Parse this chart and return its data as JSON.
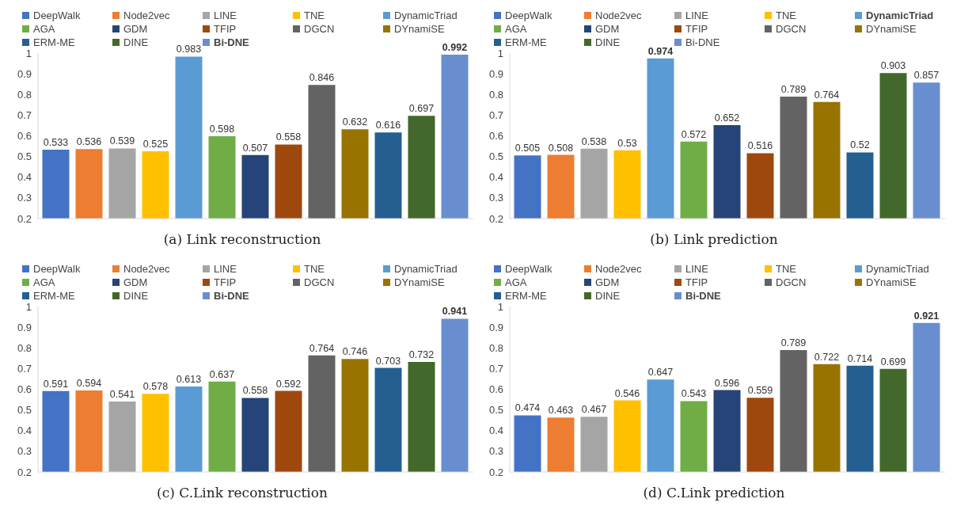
{
  "chart_data": [
    {
      "type": "bar",
      "xlabel": "(a) Link reconstruction",
      "categories": [
        null
      ],
      "ylim": [
        0.2,
        1
      ],
      "yticks": [
        0.2,
        0.3,
        0.4,
        0.5,
        0.6,
        0.7,
        0.8,
        0.9,
        1
      ],
      "grid": false,
      "legend": "top",
      "data_labels": true,
      "tick_labels": "y",
      "series": [
        {
          "name": "DeepWalk",
          "color": "#4472c4",
          "values": [
            0.533
          ]
        },
        {
          "name": "Node2vec",
          "color": "#ed7d31",
          "values": [
            0.536
          ]
        },
        {
          "name": "LINE",
          "color": "#a5a5a5",
          "values": [
            0.539
          ]
        },
        {
          "name": "TNE",
          "color": "#ffc000",
          "values": [
            0.525
          ]
        },
        {
          "name": "DynamicTriad",
          "color": "#5b9bd5",
          "values": [
            0.983
          ]
        },
        {
          "name": "AGA",
          "color": "#70ad47",
          "values": [
            0.598
          ]
        },
        {
          "name": "GDM",
          "color": "#264478",
          "values": [
            0.507
          ]
        },
        {
          "name": "TFIP",
          "color": "#9e480e",
          "values": [
            0.558
          ]
        },
        {
          "name": "DGCN",
          "color": "#636363",
          "values": [
            0.846
          ]
        },
        {
          "name": "DYnamiSE",
          "color": "#997300",
          "values": [
            0.632
          ]
        },
        {
          "name": "ERM-ME",
          "color": "#255e91",
          "values": [
            0.616
          ]
        },
        {
          "name": "DINE",
          "color": "#43682b",
          "values": [
            0.697
          ]
        },
        {
          "name": "Bi-DNE",
          "color": "#698ed0",
          "values": [
            0.992
          ]
        }
      ]
    },
    {
      "type": "bar",
      "xlabel": "(b) Link prediction",
      "categories": [
        null
      ],
      "ylim": [
        0.2,
        1
      ],
      "yticks": [
        0.2,
        0.3,
        0.4,
        0.5,
        0.6,
        0.7,
        0.8,
        0.9,
        1
      ],
      "grid": false,
      "legend": "top",
      "data_labels": true,
      "tick_labels": "y",
      "series": [
        {
          "name": "DeepWalk",
          "color": "#4472c4",
          "values": [
            0.505
          ]
        },
        {
          "name": "Node2vec",
          "color": "#ed7d31",
          "values": [
            0.508
          ]
        },
        {
          "name": "LINE",
          "color": "#a5a5a5",
          "values": [
            0.538
          ]
        },
        {
          "name": "TNE",
          "color": "#ffc000",
          "values": [
            0.53
          ]
        },
        {
          "name": "DynamicTriad",
          "color": "#5b9bd5",
          "values": [
            0.974
          ]
        },
        {
          "name": "AGA",
          "color": "#70ad47",
          "values": [
            0.572
          ]
        },
        {
          "name": "GDM",
          "color": "#264478",
          "values": [
            0.652
          ]
        },
        {
          "name": "TFIP",
          "color": "#9e480e",
          "values": [
            0.516
          ]
        },
        {
          "name": "DGCN",
          "color": "#636363",
          "values": [
            0.789
          ]
        },
        {
          "name": "DYnamiSE",
          "color": "#997300",
          "values": [
            0.764
          ]
        },
        {
          "name": "ERM-ME",
          "color": "#255e91",
          "values": [
            0.52
          ]
        },
        {
          "name": "DINE",
          "color": "#43682b",
          "values": [
            0.903
          ]
        },
        {
          "name": "Bi-DNE",
          "color": "#698ed0",
          "values": [
            0.857
          ]
        }
      ]
    },
    {
      "type": "bar",
      "xlabel": "(c) C.Link reconstruction",
      "categories": [
        null
      ],
      "ylim": [
        0.2,
        1
      ],
      "yticks": [
        0.2,
        0.3,
        0.4,
        0.5,
        0.6,
        0.7,
        0.8,
        0.9,
        1
      ],
      "grid": false,
      "legend": "top",
      "data_labels": true,
      "tick_labels": "y",
      "series": [
        {
          "name": "DeepWalk",
          "color": "#4472c4",
          "values": [
            0.591
          ]
        },
        {
          "name": "Node2vec",
          "color": "#ed7d31",
          "values": [
            0.594
          ]
        },
        {
          "name": "LINE",
          "color": "#a5a5a5",
          "values": [
            0.541
          ]
        },
        {
          "name": "TNE",
          "color": "#ffc000",
          "values": [
            0.578
          ]
        },
        {
          "name": "DynamicTriad",
          "color": "#5b9bd5",
          "values": [
            0.613
          ]
        },
        {
          "name": "AGA",
          "color": "#70ad47",
          "values": [
            0.637
          ]
        },
        {
          "name": "GDM",
          "color": "#264478",
          "values": [
            0.558
          ]
        },
        {
          "name": "TFIP",
          "color": "#9e480e",
          "values": [
            0.592
          ]
        },
        {
          "name": "DGCN",
          "color": "#636363",
          "values": [
            0.764
          ]
        },
        {
          "name": "DYnamiSE",
          "color": "#997300",
          "values": [
            0.746
          ]
        },
        {
          "name": "ERM-ME",
          "color": "#255e91",
          "values": [
            0.703
          ]
        },
        {
          "name": "DINE",
          "color": "#43682b",
          "values": [
            0.732
          ]
        },
        {
          "name": "Bi-DNE",
          "color": "#698ed0",
          "values": [
            0.941
          ]
        }
      ]
    },
    {
      "type": "bar",
      "xlabel": "(d) C.Link prediction",
      "categories": [
        null
      ],
      "ylim": [
        0.2,
        1
      ],
      "yticks": [
        0.2,
        0.3,
        0.4,
        0.5,
        0.6,
        0.7,
        0.8,
        0.9,
        1
      ],
      "grid": false,
      "legend": "top",
      "data_labels": true,
      "tick_labels": "y",
      "series": [
        {
          "name": "DeepWalk",
          "color": "#4472c4",
          "values": [
            0.474
          ]
        },
        {
          "name": "Node2vec",
          "color": "#ed7d31",
          "values": [
            0.463
          ]
        },
        {
          "name": "LINE",
          "color": "#a5a5a5",
          "values": [
            0.467
          ]
        },
        {
          "name": "TNE",
          "color": "#ffc000",
          "values": [
            0.546
          ]
        },
        {
          "name": "DynamicTriad",
          "color": "#5b9bd5",
          "values": [
            0.647
          ]
        },
        {
          "name": "AGA",
          "color": "#70ad47",
          "values": [
            0.543
          ]
        },
        {
          "name": "GDM",
          "color": "#264478",
          "values": [
            0.596
          ]
        },
        {
          "name": "TFIP",
          "color": "#9e480e",
          "values": [
            0.559
          ]
        },
        {
          "name": "DGCN",
          "color": "#636363",
          "values": [
            0.789
          ]
        },
        {
          "name": "DYnamiSE",
          "color": "#997300",
          "values": [
            0.722
          ]
        },
        {
          "name": "ERM-ME",
          "color": "#255e91",
          "values": [
            0.714
          ]
        },
        {
          "name": "DINE",
          "color": "#43682b",
          "values": [
            0.699
          ]
        },
        {
          "name": "Bi-DNE",
          "color": "#698ed0",
          "values": [
            0.921
          ]
        }
      ]
    }
  ]
}
